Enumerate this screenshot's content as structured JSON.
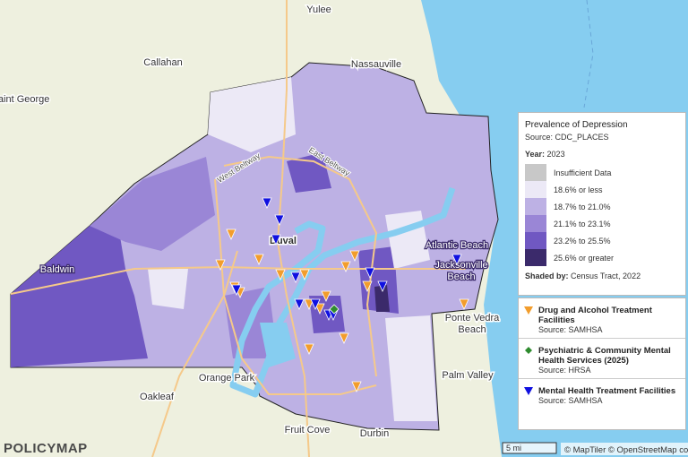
{
  "map": {
    "places": [
      "Yulee",
      "Callahan",
      "Nassauville",
      "Saint George",
      "Baldwin",
      "Duval",
      "Atlantic Beach",
      "Jacksonville",
      "Beach",
      "Ponte Vedra",
      "Beach",
      "Palm Valley",
      "Orange Park",
      "Oakleaf",
      "Fruit Cove",
      "Durbin"
    ],
    "roads": [
      "West Beltway",
      "East Beltway"
    ]
  },
  "legend": {
    "title": "Prevalence of Depression",
    "source": "Source: CDC_PLACES",
    "year_label": "Year:",
    "year": "2023",
    "items": [
      {
        "label": "Insufficient Data",
        "color": "#c8c8c8"
      },
      {
        "label": "18.6% or less",
        "color": "#ece9f6"
      },
      {
        "label": "18.7% to 21.0%",
        "color": "#bdb1e4"
      },
      {
        "label": "21.1% to 23.1%",
        "color": "#9a86d6"
      },
      {
        "label": "23.2% to 25.5%",
        "color": "#7058c2"
      },
      {
        "label": "25.6% or greater",
        "color": "#3b2a6b"
      }
    ],
    "shaded_label": "Shaded by:",
    "shaded": "Census Tract, 2022"
  },
  "layers": [
    {
      "name": "Drug and Alcohol Treatment Facilities",
      "source": "Source: SAMHSA",
      "color": "#f29d2c"
    },
    {
      "name": "Psychiatric & Community Mental Health Services (2025)",
      "source": "Source: HRSA",
      "color": "#2e8b2e"
    },
    {
      "name": "Mental Health Treatment Facilities",
      "source": "Source: SAMHSA",
      "color": "#1010e0"
    }
  ],
  "footer": {
    "logo": "POLICYMAP",
    "scale": "5 mi",
    "attribution": "© MapTiler © OpenStreetMap contrib"
  }
}
